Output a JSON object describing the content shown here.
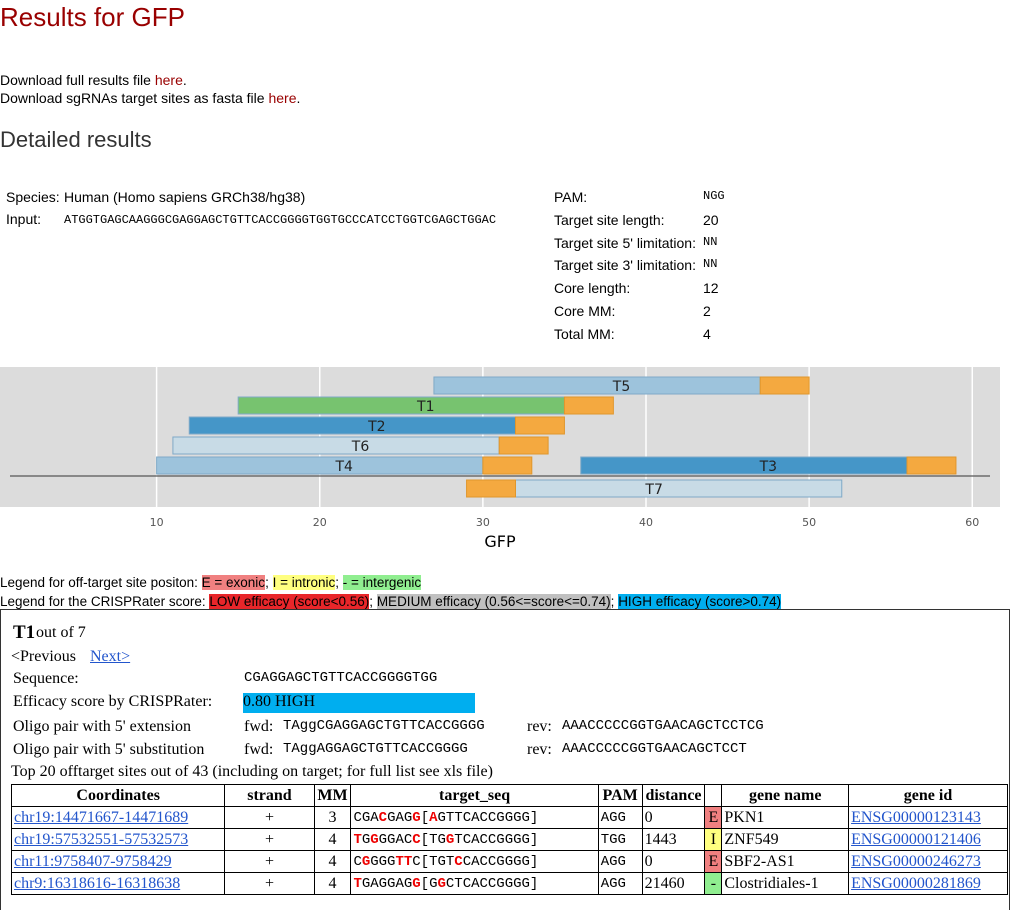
{
  "header": {
    "title": "Results for GFP"
  },
  "downloads": [
    {
      "text": "Download full results file ",
      "link": "here",
      "end": "."
    },
    {
      "text": "Download sgRNAs target sites as fasta file ",
      "link": "here",
      "end": "."
    }
  ],
  "section_title": "Detailed results",
  "params_left": [
    [
      "Species:",
      "Human (Homo sapiens GRCh38/hg38)"
    ],
    [
      "Input:",
      "ATGGTGAGCAAGGGCGAGGAGCTGTTCACCGGGGTGGTGCCCATCCTGGTCGAGCTGGAC"
    ]
  ],
  "params_right": [
    [
      "PAM:",
      "NGG"
    ],
    [
      "Target site length:",
      20
    ],
    [
      "Target site 5' limitation:",
      "NN"
    ],
    [
      "Target site 3' limitation:",
      "NN"
    ],
    [
      "Core length:",
      12
    ],
    [
      "Core MM:",
      2
    ],
    [
      "Total MM:",
      4
    ]
  ],
  "plot": {
    "xlabel": "GFP",
    "xlim": [
      0.4,
      61.7
    ],
    "xticks": [
      10,
      20,
      30,
      40,
      50,
      60
    ],
    "pam_color": "#f4a940",
    "sites": [
      {
        "label": "T5",
        "target": [
          27,
          47
        ],
        "pam": [
          47,
          50
        ],
        "color": "#9dc3dc"
      },
      {
        "label": "T1",
        "target": [
          15,
          35
        ],
        "pam": [
          35,
          38
        ],
        "color": "#77c36f"
      },
      {
        "label": "T2",
        "target": [
          12,
          32
        ],
        "pam": [
          32,
          35
        ],
        "color": "#4596c8"
      },
      {
        "label": "T6",
        "target": [
          11,
          31
        ],
        "pam": [
          31,
          34
        ],
        "color": "#c8dbe6"
      },
      {
        "label": "T4",
        "target": [
          10,
          30
        ],
        "pam": [
          30,
          33
        ],
        "color": "#9dc3dc"
      },
      {
        "label": "T3",
        "target": [
          36,
          56
        ],
        "pam": [
          56,
          59
        ],
        "color": "#4596c8"
      },
      {
        "label": "T7",
        "target": [
          32,
          52
        ],
        "pam": [
          29,
          32
        ],
        "color": "#c8dbe6"
      }
    ]
  },
  "legend": {
    "line1": {
      "text": "Legend for off-target site positon: ",
      "items": [
        {
          "text": "E = exonic",
          "color": "#f08080"
        },
        {
          "text": "I = intronic",
          "color": "#ffff80"
        },
        {
          "text": "- = intergenic",
          "color": "#90ee90"
        }
      ],
      "sep": "; "
    },
    "line2": {
      "text": "Legend for the CRISPRater score: ",
      "items": [
        {
          "text": "LOW efficacy (score<0.56)",
          "color": "#e8262a"
        },
        {
          "text": "MEDIUM efficacy (0.56<=score<=0.74)",
          "color": "#c0c0c0"
        },
        {
          "text": "HIGH efficacy (score>0.74)",
          "color": "#00aeef"
        }
      ],
      "sep": "; "
    }
  },
  "detail": {
    "target": "T1",
    "out_of": " out of 7",
    "prev": "<Previous",
    "next": "Next>",
    "sequence_label": "Sequence:",
    "sequence": "CGAGGAGCTGTTCACCGGGGTGG",
    "efficacy_label": "Efficacy score by CRISPRater:",
    "efficacy": "0.80 HIGH",
    "efficacy_color": "#00aeef",
    "ext_label": "Oligo pair with 5' extension",
    "ext_fwd_label": "fwd:",
    "ext_fwd": "TAggCGAGGAGCTGTTCACCGGGG",
    "ext_rev_label": "rev:",
    "ext_rev": "AAACCCCCGGTGAACAGCTCCTCG",
    "sub_label": "Oligo pair with 5' substitution",
    "sub_fwd_label": "fwd:",
    "sub_fwd": "TAggAGGAGCTGTTCACCGGGG",
    "sub_rev_label": "rev:",
    "sub_rev": "AAACCCCCGGTGAACAGCTCCT",
    "top_text": "Top 20 offtarget sites out of 43 (including on target; for full list see xls file)"
  },
  "table": {
    "headers": [
      "Coordinates",
      "strand",
      "MM",
      "target_seq",
      "PAM",
      "distance",
      "",
      "gene name",
      "gene id"
    ],
    "rows": [
      {
        "coord": "chr19:14471667-14471689",
        "strand": "+",
        "mm": 3,
        "seq": [
          {
            "t": "CGA"
          },
          {
            "t": "C",
            "red": true
          },
          {
            "t": "GAG"
          },
          {
            "t": "G",
            "red": true
          },
          {
            "t": "["
          },
          {
            "t": "A",
            "red": true
          },
          {
            "t": "GTTCACCGGGG]"
          }
        ],
        "pam": "AGG",
        "distance": 0,
        "pos": "E",
        "pos_color": "#f08080",
        "gene": "PKN1",
        "id": "ENSG00000123143"
      },
      {
        "coord": "chr19:57532551-57532573",
        "strand": "+",
        "mm": 4,
        "seq": [
          {
            "t": "T",
            "red": true
          },
          {
            "t": "G"
          },
          {
            "t": "G",
            "red": true
          },
          {
            "t": "GGAC"
          },
          {
            "t": "C",
            "red": true
          },
          {
            "t": "[TG"
          },
          {
            "t": "G",
            "red": true
          },
          {
            "t": "TCACCGGGG]"
          }
        ],
        "pam": "TGG",
        "distance": 1443,
        "pos": "I",
        "pos_color": "#ffff80",
        "gene": "ZNF549",
        "id": "ENSG00000121406"
      },
      {
        "coord": "chr11:9758407-9758429",
        "strand": "+",
        "mm": 4,
        "seq": [
          {
            "t": "C"
          },
          {
            "t": "G",
            "red": true
          },
          {
            "t": "GGG"
          },
          {
            "t": "TT",
            "red": true
          },
          {
            "t": "C[TGT"
          },
          {
            "t": "C",
            "red": true
          },
          {
            "t": "CACCGGGG]"
          }
        ],
        "pam": "AGG",
        "distance": 0,
        "pos": "E",
        "pos_color": "#f08080",
        "gene": "SBF2-AS1",
        "id": "ENSG00000246273"
      },
      {
        "coord": "chr9:16318616-16318638",
        "strand": "+",
        "mm": 4,
        "seq": [
          {
            "t": "T",
            "red": true
          },
          {
            "t": "GAGGAG"
          },
          {
            "t": "G",
            "red": true
          },
          {
            "t": "[G"
          },
          {
            "t": "G",
            "red": true
          },
          {
            "t": "CTCACCGGGG]"
          }
        ],
        "pam": "AGG",
        "distance": 21460,
        "pos": "-",
        "pos_color": "#90ee90",
        "gene": "Clostridiales-1",
        "id": "ENSG00000281869"
      }
    ]
  }
}
